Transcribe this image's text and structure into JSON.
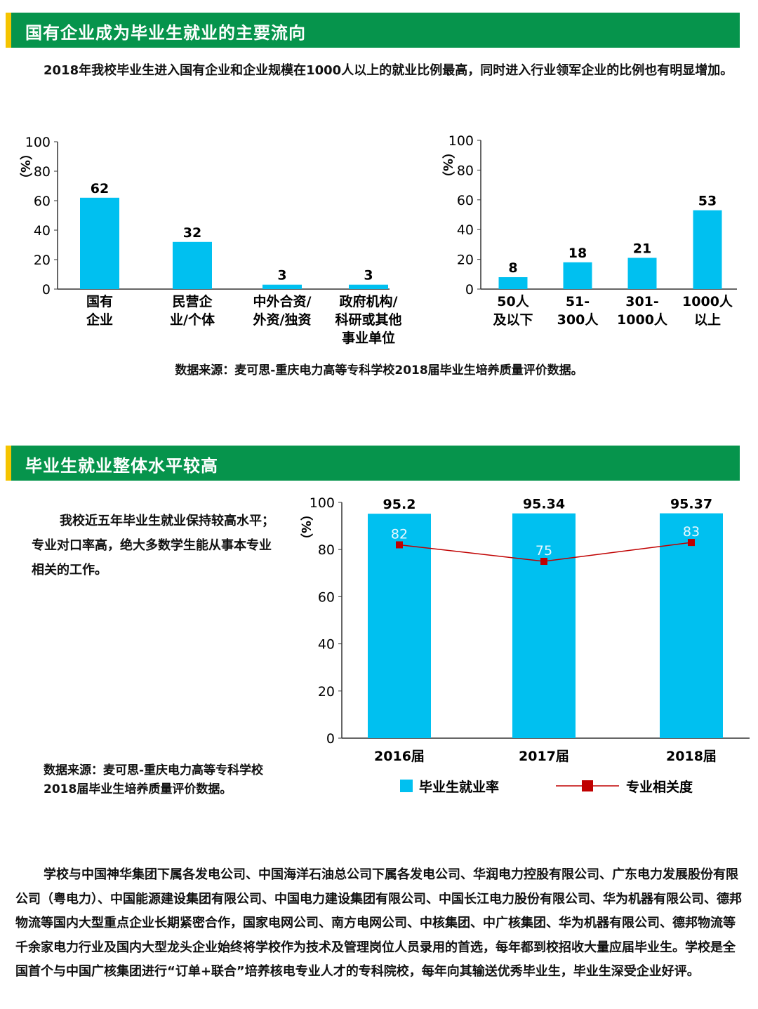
{
  "section1": {
    "title": "国有企业成为毕业生就业的主要流向",
    "paragraph": "2018年我校毕业生进入国有企业和企业规模在1000人以上的就业比例最高，同时进入行业领军企业的比例也有明显增加。",
    "source": "数据来源：麦可思-重庆电力高等专科学校2018届毕业生培养质量评价数据。"
  },
  "section2": {
    "title": "毕业生就业整体水平较高",
    "paragraph": "我校近五年毕业生就业保持较高水平；专业对口率高，绝大多数学生能从事本专业相关的工作。",
    "source_line1": "数据来源：麦可思-重庆电力高等专科学校",
    "source_line2": "2018届毕业生培养质量评价数据。"
  },
  "bottom_paragraph": "学校与中国神华集团下属各发电公司、中国海洋石油总公司下属各发电公司、华润电力控股有限公司、广东电力发展股份有限公司（粤电力）、中国能源建设集团有限公司、中国电力建设集团有限公司、中国长江电力股份有限公司、华为机器有限公司、德邦物流等国内大型重点企业长期紧密合作，国家电网公司、南方电网公司、中核集团、中广核集团、华为机器有限公司、德邦物流等千余家电力行业及国内大型龙头企业始终将学校作为技术及管理岗位人员录用的首选，每年都到校招收大量应届毕业生。学校是全国首个与中国广核集团进行“订单+联合”培养核电专业人才的专科院校，每年向其输送优秀毕业生，毕业生深受企业好评。",
  "colors": {
    "bar": "#00c0f0",
    "line": "#c00000",
    "header": "#06944c",
    "accent": "#f5c400"
  },
  "chart_data": [
    {
      "type": "bar",
      "ylabel": "（%）",
      "ylim": [
        0,
        100
      ],
      "yticks": [
        0,
        20,
        40,
        60,
        80,
        100
      ],
      "categories": [
        [
          "国有",
          "企业"
        ],
        [
          "民营企",
          "业/个体"
        ],
        [
          "中外合资/",
          "外资/独资"
        ],
        [
          "政府机构/",
          "科研或其他",
          "事业单位"
        ]
      ],
      "values": [
        62,
        32,
        3,
        3
      ]
    },
    {
      "type": "bar",
      "ylabel": "（%）",
      "ylim": [
        0,
        100
      ],
      "yticks": [
        0,
        20,
        40,
        60,
        80,
        100
      ],
      "categories": [
        [
          "50人",
          "及以下"
        ],
        [
          "51-",
          "300人"
        ],
        [
          "301-",
          "1000人"
        ],
        [
          "1000人",
          "以上"
        ]
      ],
      "values": [
        8,
        18,
        21,
        53
      ]
    },
    {
      "type": "bar",
      "ylabel": "（%）",
      "ylim": [
        0,
        100
      ],
      "yticks": [
        0,
        20,
        40,
        60,
        80,
        100
      ],
      "categories": [
        "2016届",
        "2017届",
        "2018届"
      ],
      "series": [
        {
          "name": "毕业生就业率",
          "type": "bar",
          "values": [
            95.2,
            95.34,
            95.37
          ]
        },
        {
          "name": "专业相关度",
          "type": "line",
          "values": [
            82,
            75,
            83
          ]
        }
      ],
      "legend": "bottom"
    }
  ]
}
